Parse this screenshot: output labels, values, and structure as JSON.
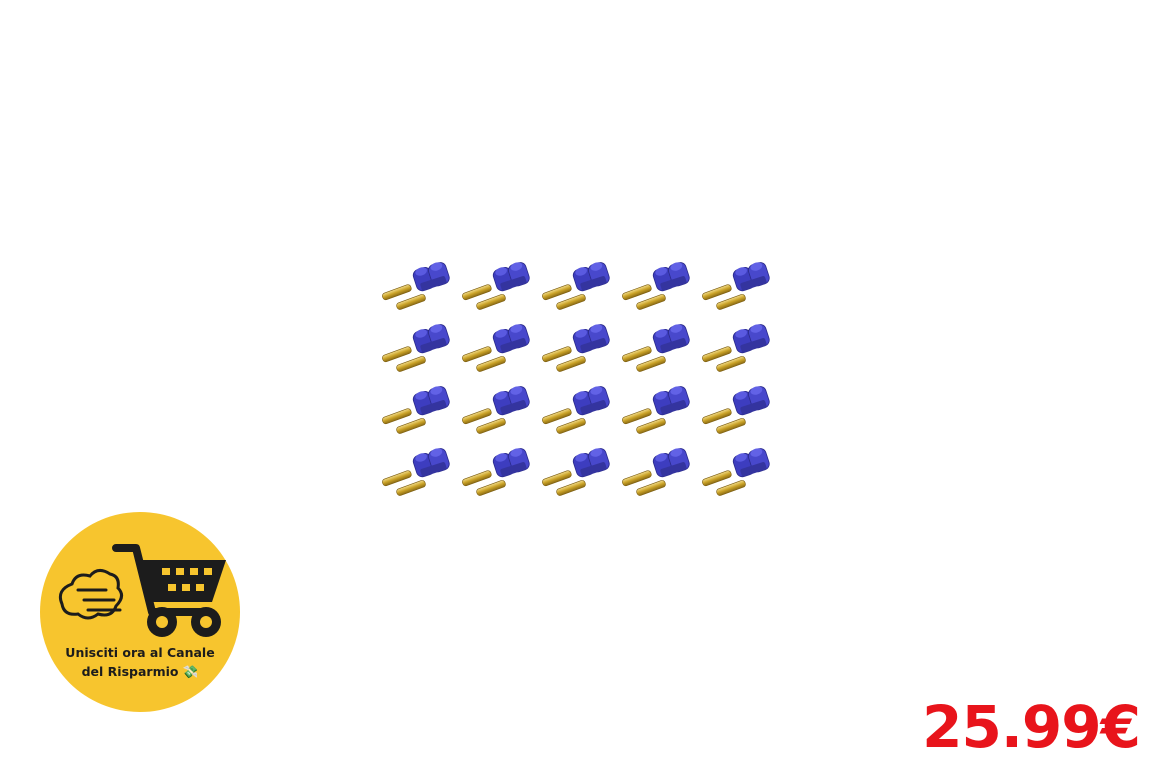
{
  "product": {
    "rows": 4,
    "columns": 5,
    "connector_color": "#3F3FBF",
    "pin_color": "#C9A227",
    "image_icon": "ec2-connector-icon"
  },
  "badge": {
    "background_color": "#F7C52E",
    "icon": "shopping-cart-icon",
    "line1": "Unisciti ora al Canale",
    "line2": "del Risparmio 💸"
  },
  "price": {
    "text": "25.99€",
    "color": "#E8141B"
  }
}
